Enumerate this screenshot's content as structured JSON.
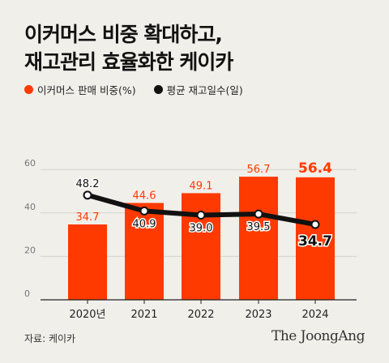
{
  "title_line1": "이커머스 비중 확대하고,",
  "title_line2": "재고관리 효율화한 케이카",
  "legend": {
    "bar_label": "이커머스 판매 비중(%)",
    "line_label": "평균 재고일수(일)"
  },
  "colors": {
    "bar": "#ff3a00",
    "line": "#111111",
    "bar_label": "#ff3a00",
    "background": "#f1efea"
  },
  "chart_data": {
    "type": "bar",
    "categories": [
      "2020년",
      "2021",
      "2022",
      "2023",
      "2024"
    ],
    "series": [
      {
        "name": "이커머스 판매 비중(%)",
        "type": "bar",
        "values": [
          34.7,
          44.6,
          49.1,
          56.7,
          56.4
        ]
      },
      {
        "name": "평균 재고일수(일)",
        "type": "line",
        "values": [
          48.2,
          40.9,
          39.0,
          39.5,
          34.7
        ]
      }
    ],
    "yticks": [
      0,
      20,
      40,
      60
    ],
    "ylim": [
      0,
      66
    ],
    "grid": true
  },
  "source": "자료: 케이카",
  "brand": "The JoongAng"
}
